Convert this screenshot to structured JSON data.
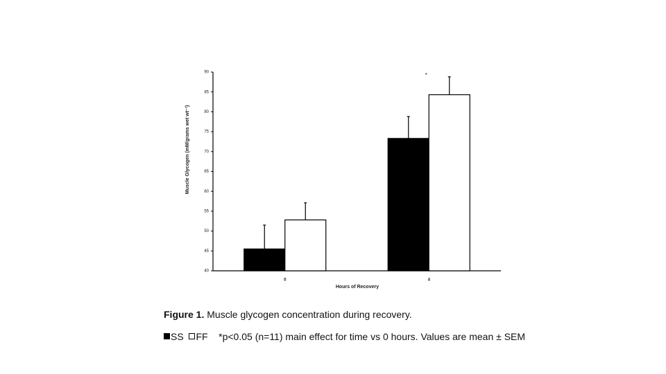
{
  "chart_data": {
    "type": "bar",
    "categories": [
      "0",
      "4"
    ],
    "series": [
      {
        "name": "SS",
        "color": "#000000",
        "values": [
          45.5,
          73.3
        ],
        "errors": [
          6.0,
          5.5
        ]
      },
      {
        "name": "FF",
        "color": "#ffffff",
        "values": [
          52.8,
          84.3
        ],
        "errors": [
          4.3,
          4.5
        ]
      }
    ],
    "ylim": [
      40,
      90
    ],
    "yticks": [
      40,
      45,
      50,
      55,
      60,
      65,
      70,
      75,
      80,
      85,
      90
    ],
    "y_label": "Muscle Glycogen (mM/grams wet wt⁻¹)",
    "x_label": "Hours of Recovery",
    "annotations": [
      {
        "text": "*",
        "category": 1
      }
    ],
    "figure_label": "Figure 1.",
    "caption": "Muscle glycogen concentration during recovery.",
    "note": "*p<0.05 (n=11) main effect for time vs 0 hours. Values are mean ± SEM"
  }
}
